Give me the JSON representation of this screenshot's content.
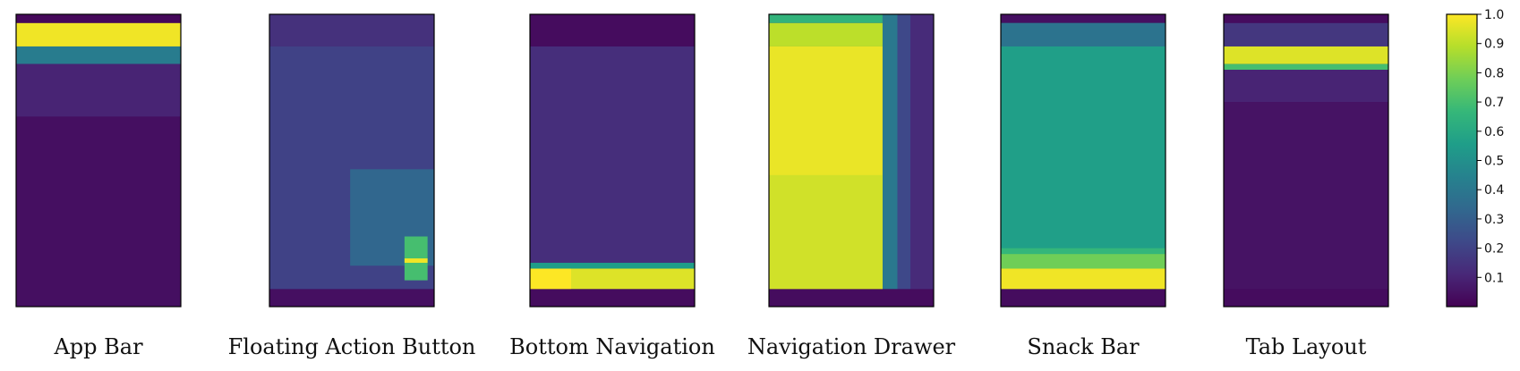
{
  "chart_data": {
    "type": "heatmap",
    "description_scale": "viridis",
    "colormap_stops": [
      "#440154",
      "#482878",
      "#3e4989",
      "#31688e",
      "#26828e",
      "#1f9e89",
      "#35b779",
      "#6ece58",
      "#b5de2b",
      "#fde725"
    ],
    "value_range": [
      0,
      1
    ],
    "colorbar": {
      "ticks": [
        "0.1",
        "0.2",
        "0.3",
        "0.4",
        "0.5",
        "0.6",
        "0.7",
        "0.8",
        "0.9",
        "1.0"
      ],
      "tick_values": [
        0.1,
        0.2,
        0.3,
        0.4,
        0.5,
        0.6,
        0.7,
        0.8,
        0.9,
        1.0
      ]
    },
    "panels": [
      {
        "label": "App Bar",
        "background": 0.03,
        "bands": [
          {
            "y0": 0.0,
            "y1": 0.03,
            "x0": 0,
            "x1": 1,
            "v": 0.02
          },
          {
            "y0": 0.03,
            "y1": 0.11,
            "x0": 0,
            "x1": 1,
            "v": 0.98
          },
          {
            "y0": 0.11,
            "y1": 0.17,
            "x0": 0,
            "x1": 1,
            "v": 0.42
          },
          {
            "y0": 0.17,
            "y1": 0.35,
            "x0": 0,
            "x1": 1,
            "v": 0.1
          },
          {
            "y0": 0.35,
            "y1": 1.0,
            "x0": 0,
            "x1": 1,
            "v": 0.04
          }
        ]
      },
      {
        "label": "Floating Action Button",
        "background": 0.17,
        "bands": [
          {
            "y0": 0.0,
            "y1": 0.11,
            "x0": 0,
            "x1": 1,
            "v": 0.14
          },
          {
            "y0": 0.11,
            "y1": 0.94,
            "x0": 0,
            "x1": 1,
            "v": 0.2
          },
          {
            "y0": 0.94,
            "y1": 1.0,
            "x0": 0,
            "x1": 1,
            "v": 0.04
          },
          {
            "y0": 0.53,
            "y1": 0.86,
            "x0": 0.49,
            "x1": 1,
            "v": 0.33
          },
          {
            "y0": 0.76,
            "y1": 0.91,
            "x0": 0.82,
            "x1": 0.96,
            "v": 0.7
          },
          {
            "y0": 0.835,
            "y1": 0.85,
            "x0": 0.82,
            "x1": 0.96,
            "v": 0.98
          }
        ]
      },
      {
        "label": "Bottom Navigation",
        "background": 0.12,
        "bands": [
          {
            "y0": 0.0,
            "y1": 0.11,
            "x0": 0,
            "x1": 1,
            "v": 0.03
          },
          {
            "y0": 0.11,
            "y1": 0.85,
            "x0": 0,
            "x1": 1,
            "v": 0.13
          },
          {
            "y0": 0.85,
            "y1": 0.87,
            "x0": 0,
            "x1": 1,
            "v": 0.55
          },
          {
            "y0": 0.87,
            "y1": 0.94,
            "x0": 0,
            "x1": 1,
            "v": 0.95
          },
          {
            "y0": 0.87,
            "y1": 0.94,
            "x0": 0,
            "x1": 0.25,
            "v": 1.0
          },
          {
            "y0": 0.94,
            "y1": 1.0,
            "x0": 0,
            "x1": 1,
            "v": 0.03
          }
        ]
      },
      {
        "label": "Navigation Drawer",
        "background": 0.1,
        "bands": [
          {
            "y0": 0.0,
            "y1": 0.03,
            "x0": 0,
            "x1": 0.69,
            "v": 0.65
          },
          {
            "y0": 0.03,
            "y1": 0.11,
            "x0": 0,
            "x1": 0.69,
            "v": 0.9
          },
          {
            "y0": 0.11,
            "y1": 0.94,
            "x0": 0,
            "x1": 0.69,
            "v": 0.97
          },
          {
            "y0": 0.55,
            "y1": 0.94,
            "x0": 0,
            "x1": 0.69,
            "v": 0.93
          },
          {
            "y0": 0.0,
            "y1": 0.94,
            "x0": 0.69,
            "x1": 0.78,
            "v": 0.4
          },
          {
            "y0": 0.0,
            "y1": 0.94,
            "x0": 0.78,
            "x1": 0.86,
            "v": 0.22
          },
          {
            "y0": 0.0,
            "y1": 0.94,
            "x0": 0.86,
            "x1": 1,
            "v": 0.12
          },
          {
            "y0": 0.94,
            "y1": 1.0,
            "x0": 0,
            "x1": 1,
            "v": 0.03
          }
        ]
      },
      {
        "label": "Snack Bar",
        "background": 0.55,
        "bands": [
          {
            "y0": 0.0,
            "y1": 0.03,
            "x0": 0,
            "x1": 1,
            "v": 0.04
          },
          {
            "y0": 0.03,
            "y1": 0.11,
            "x0": 0,
            "x1": 1,
            "v": 0.38
          },
          {
            "y0": 0.11,
            "y1": 0.8,
            "x0": 0,
            "x1": 1,
            "v": 0.56
          },
          {
            "y0": 0.8,
            "y1": 0.82,
            "x0": 0,
            "x1": 1,
            "v": 0.66
          },
          {
            "y0": 0.82,
            "y1": 0.87,
            "x0": 0,
            "x1": 1,
            "v": 0.78
          },
          {
            "y0": 0.87,
            "y1": 0.94,
            "x0": 0,
            "x1": 1,
            "v": 0.98
          },
          {
            "y0": 0.94,
            "y1": 1.0,
            "x0": 0,
            "x1": 1,
            "v": 0.03
          }
        ]
      },
      {
        "label": "Tab Layout",
        "background": 0.04,
        "bands": [
          {
            "y0": 0.0,
            "y1": 0.03,
            "x0": 0,
            "x1": 1,
            "v": 0.03
          },
          {
            "y0": 0.03,
            "y1": 0.11,
            "x0": 0,
            "x1": 1,
            "v": 0.16
          },
          {
            "y0": 0.11,
            "y1": 0.17,
            "x0": 0,
            "x1": 1,
            "v": 0.95
          },
          {
            "y0": 0.17,
            "y1": 0.19,
            "x0": 0,
            "x1": 1,
            "v": 0.7
          },
          {
            "y0": 0.19,
            "y1": 0.3,
            "x0": 0,
            "x1": 1,
            "v": 0.1
          },
          {
            "y0": 0.3,
            "y1": 0.94,
            "x0": 0,
            "x1": 1,
            "v": 0.05
          },
          {
            "y0": 0.94,
            "y1": 1.0,
            "x0": 0,
            "x1": 1,
            "v": 0.03
          }
        ]
      }
    ]
  }
}
